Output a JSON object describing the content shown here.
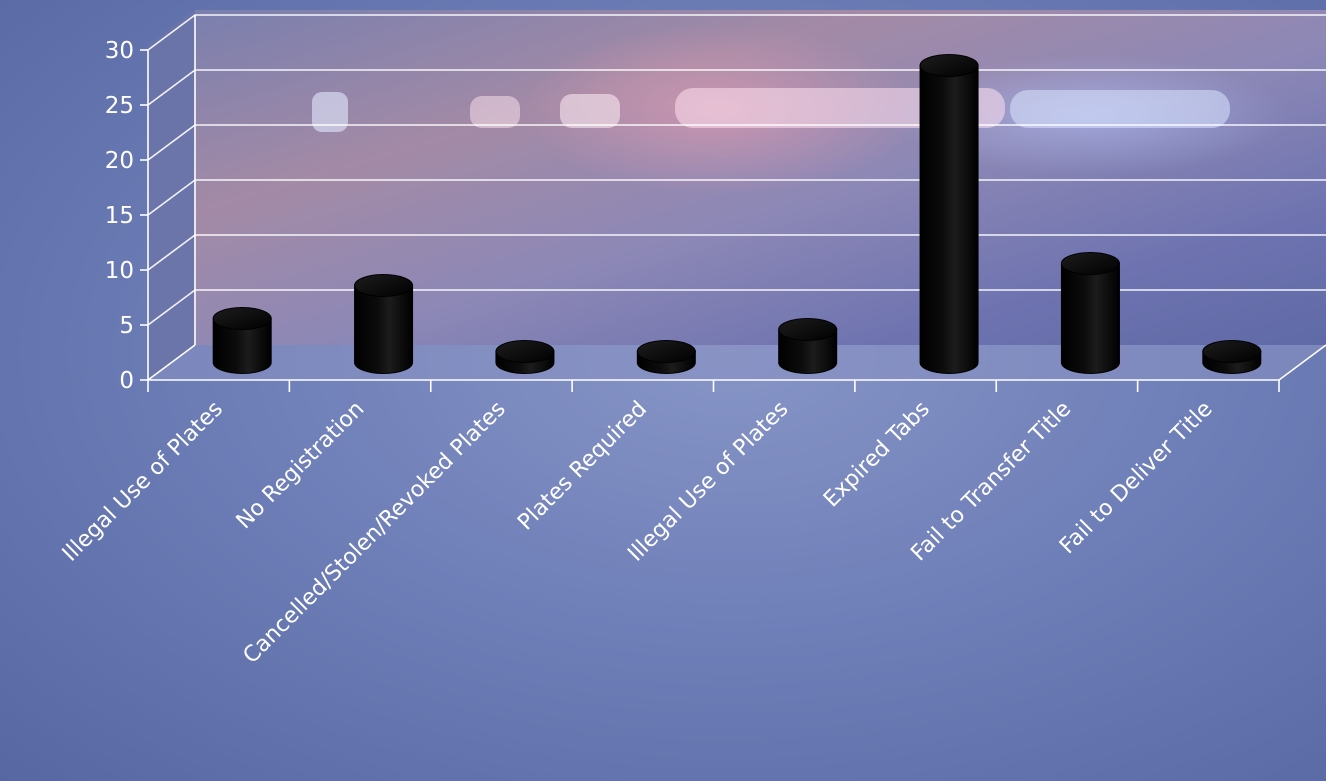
{
  "chart_data": {
    "type": "bar",
    "style": "3d-cylinder",
    "categories": [
      "Illegal Use of Plates",
      "No Registration",
      "Cancelled/Stolen/Revoked Plates",
      "Plates Required",
      "Illegal Use of Plates",
      "Expired Tabs",
      "Fail to Transfer Title",
      "Fail to Deliver Title"
    ],
    "values": [
      4,
      7,
      1,
      1,
      3,
      27,
      9,
      1
    ],
    "ylim": [
      0,
      30
    ],
    "yticks": [
      "0",
      "5",
      "10",
      "15",
      "20",
      "25",
      "30"
    ],
    "grid": true,
    "legend": "none",
    "bar_color": "#000000",
    "gridline_color": "#ffffff",
    "label_color": "#ffffff"
  }
}
